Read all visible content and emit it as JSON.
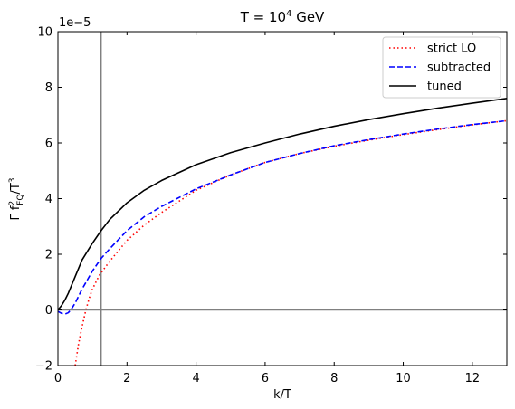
{
  "chart_data": {
    "type": "line",
    "title": "T = 10^4 GeV",
    "title_parts": {
      "base": "T = 10",
      "exp": "4",
      "unit": " GeV"
    },
    "xlabel": "k/T",
    "ylabel": "Γ f_{FQ}^{2}/T^{3}",
    "ylabel_parts": {
      "a": "Γ f",
      "sup": "2",
      "sub": "FQ",
      "b": "/T",
      "sup2": "3"
    },
    "y_offset_text": "1e−5",
    "xlim": [
      0,
      13
    ],
    "ylim": [
      -2,
      10
    ],
    "x_ticks": [
      0,
      2,
      4,
      6,
      8,
      10,
      12
    ],
    "y_ticks": [
      -2,
      0,
      2,
      4,
      6,
      8,
      10
    ],
    "x_tick_labels": [
      "0",
      "2",
      "4",
      "6",
      "8",
      "10",
      "12"
    ],
    "y_tick_labels": [
      "−2",
      "0",
      "2",
      "4",
      "6",
      "8",
      "10"
    ],
    "reference_lines": {
      "vertical_x": 1.25,
      "horizontal_y": 0,
      "color": "#808080"
    },
    "legend_position": "top-right",
    "grid": false,
    "series": [
      {
        "name": "strict LO",
        "color": "#ff0000",
        "style": "dotted",
        "x": [
          0.5,
          0.6,
          0.7,
          0.8,
          0.9,
          1.0,
          1.2,
          1.5,
          2.0,
          2.5,
          3.0,
          4.0,
          5.0,
          6.0,
          7.0,
          8.0,
          9.0,
          10.0,
          11.0,
          12.0,
          13.0
        ],
        "y": [
          -2.0,
          -1.2,
          -0.6,
          -0.05,
          0.4,
          0.75,
          1.25,
          1.75,
          2.5,
          3.05,
          3.5,
          4.3,
          4.85,
          5.3,
          5.62,
          5.88,
          6.1,
          6.3,
          6.48,
          6.65,
          6.8
        ]
      },
      {
        "name": "subtracted",
        "color": "#0000ff",
        "style": "dashed",
        "x": [
          0.0,
          0.1,
          0.2,
          0.3,
          0.4,
          0.5,
          0.7,
          1.0,
          1.25,
          1.5,
          2.0,
          2.5,
          3.0,
          4.0,
          5.0,
          6.0,
          7.0,
          8.0,
          9.0,
          10.0,
          11.0,
          12.0,
          13.0
        ],
        "y": [
          -0.05,
          -0.12,
          -0.15,
          -0.1,
          0.05,
          0.25,
          0.75,
          1.4,
          1.85,
          2.2,
          2.85,
          3.35,
          3.72,
          4.35,
          4.85,
          5.3,
          5.62,
          5.9,
          6.12,
          6.32,
          6.5,
          6.66,
          6.8
        ]
      },
      {
        "name": "tuned",
        "color": "#000000",
        "style": "solid",
        "x": [
          0.0,
          0.1,
          0.2,
          0.3,
          0.5,
          0.7,
          1.0,
          1.25,
          1.5,
          2.0,
          2.5,
          3.0,
          4.0,
          5.0,
          6.0,
          7.0,
          8.0,
          9.0,
          10.0,
          11.0,
          12.0,
          13.0
        ],
        "y": [
          0.0,
          0.15,
          0.35,
          0.6,
          1.2,
          1.8,
          2.4,
          2.85,
          3.25,
          3.85,
          4.3,
          4.65,
          5.22,
          5.65,
          6.0,
          6.32,
          6.6,
          6.84,
          7.05,
          7.25,
          7.43,
          7.6
        ]
      }
    ]
  }
}
